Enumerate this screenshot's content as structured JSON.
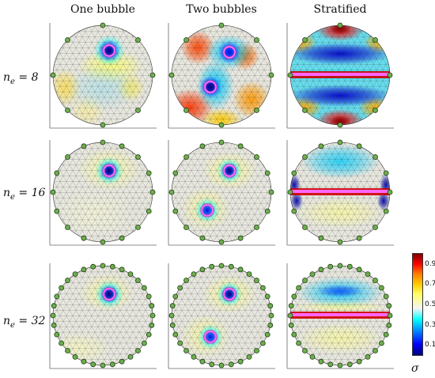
{
  "columns": [
    "One bubble",
    "Two bubbles",
    "Stratified"
  ],
  "rows": [
    {
      "n": "n",
      "sub": "e",
      "eq": " = 8",
      "electrodes": 8
    },
    {
      "n": "n",
      "sub": "e",
      "eq": " = 16",
      "electrodes": 16
    },
    {
      "n": "n",
      "sub": "e",
      "eq": " = 32",
      "electrodes": 32
    }
  ],
  "colorbar": {
    "ticks": [
      "0.9",
      "0.7",
      "0.5",
      "0.3",
      "0.1"
    ],
    "tick_values": [
      0.9,
      0.7,
      0.5,
      0.3,
      0.1
    ],
    "range": [
      0.0,
      1.0
    ],
    "label": "σ"
  }
}
